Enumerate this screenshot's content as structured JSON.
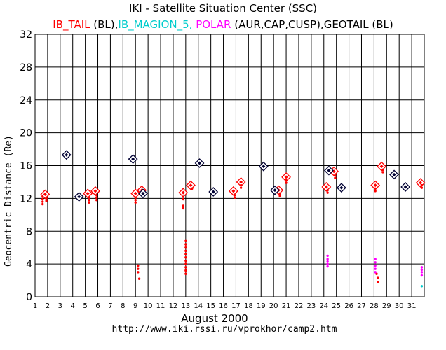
{
  "chart_data": {
    "type": "scatter",
    "title": "IKI - Satellite Situation Center (SSC)",
    "legend_parts": [
      {
        "text": "IB_TAIL",
        "color": "#ff0000"
      },
      {
        "text": " (BL),",
        "color": "#000000"
      },
      {
        "text": "IB_MAGION_5,",
        "color": "#00cccc"
      },
      {
        "text": " POLAR",
        "color": "#ff00ff"
      },
      {
        "text": " (AUR,CAP,CUSP),GEOTAIL (BL)",
        "color": "#000000"
      }
    ],
    "ylabel": "Geocentric Distance (Re)",
    "xlabel": "August   2000",
    "url": "http://www.iki.rssi.ru/vprokhor/camp2.htm",
    "xlim": [
      1,
      32
    ],
    "ylim": [
      0,
      32
    ],
    "xticks": [
      1,
      2,
      3,
      4,
      5,
      6,
      7,
      8,
      9,
      10,
      11,
      12,
      13,
      14,
      15,
      16,
      17,
      18,
      19,
      20,
      21,
      22,
      23,
      24,
      25,
      26,
      27,
      28,
      29,
      30,
      31
    ],
    "yticks": [
      0,
      4,
      8,
      12,
      16,
      20,
      24,
      28,
      32
    ],
    "grid": true,
    "colors": {
      "ib_tail": "#ff0000",
      "ib_magion_5": "#00cccc",
      "polar": "#ff00ff",
      "geotail": "#000033"
    },
    "series": [
      {
        "name": "IB_TAIL",
        "marker": "diamond",
        "points": [
          [
            1.8,
            12.5
          ],
          [
            5.2,
            12.6
          ],
          [
            5.8,
            12.9
          ],
          [
            9.0,
            12.6
          ],
          [
            9.5,
            13.0
          ],
          [
            12.8,
            12.7
          ],
          [
            13.4,
            13.6
          ],
          [
            16.8,
            12.9
          ],
          [
            17.4,
            14.0
          ],
          [
            20.4,
            13.0
          ],
          [
            21.0,
            14.6
          ],
          [
            24.2,
            13.4
          ],
          [
            24.8,
            15.3
          ],
          [
            28.1,
            13.6
          ],
          [
            28.6,
            15.9
          ],
          [
            31.7,
            13.9
          ]
        ]
      },
      {
        "name": "IB_TAIL (BL)",
        "marker": "dots",
        "points": [
          [
            1.6,
            12.2
          ],
          [
            1.6,
            11.9
          ],
          [
            1.6,
            11.6
          ],
          [
            1.6,
            11.3
          ],
          [
            1.9,
            12.0
          ],
          [
            1.9,
            11.7
          ],
          [
            5.3,
            12.1
          ],
          [
            5.3,
            11.8
          ],
          [
            5.3,
            11.5
          ],
          [
            5.9,
            12.4
          ],
          [
            5.9,
            12.1
          ],
          [
            5.9,
            11.8
          ],
          [
            9.0,
            12.1
          ],
          [
            9.0,
            11.8
          ],
          [
            9.0,
            11.5
          ],
          [
            9.2,
            3.8
          ],
          [
            9.2,
            3.4
          ],
          [
            9.2,
            3.0
          ],
          [
            9.3,
            2.2
          ],
          [
            12.8,
            12.2
          ],
          [
            12.8,
            11.9
          ],
          [
            12.8,
            11.1
          ],
          [
            12.8,
            10.8
          ],
          [
            13.0,
            6.8
          ],
          [
            13.0,
            6.4
          ],
          [
            13.0,
            6.0
          ],
          [
            13.0,
            5.6
          ],
          [
            13.0,
            5.2
          ],
          [
            13.0,
            4.8
          ],
          [
            13.0,
            4.4
          ],
          [
            13.0,
            4.0
          ],
          [
            13.0,
            3.6
          ],
          [
            13.0,
            3.2
          ],
          [
            13.0,
            2.8
          ],
          [
            13.5,
            13.2
          ],
          [
            16.9,
            12.4
          ],
          [
            16.9,
            12.1
          ],
          [
            17.4,
            13.6
          ],
          [
            17.4,
            13.3
          ],
          [
            20.5,
            12.6
          ],
          [
            20.5,
            12.3
          ],
          [
            21.0,
            14.2
          ],
          [
            21.0,
            13.9
          ],
          [
            24.3,
            13.0
          ],
          [
            24.3,
            12.7
          ],
          [
            24.9,
            14.8
          ],
          [
            24.9,
            14.5
          ],
          [
            28.1,
            13.2
          ],
          [
            28.1,
            12.9
          ],
          [
            28.2,
            2.8
          ],
          [
            28.3,
            2.3
          ],
          [
            28.3,
            1.8
          ],
          [
            28.7,
            15.5
          ],
          [
            28.7,
            15.2
          ],
          [
            31.8,
            13.6
          ],
          [
            31.8,
            13.3
          ]
        ]
      },
      {
        "name": "GEOTAIL (BL)",
        "marker": "diamond",
        "points": [
          [
            3.5,
            17.3
          ],
          [
            4.5,
            12.2
          ],
          [
            8.8,
            16.8
          ],
          [
            9.6,
            12.6
          ],
          [
            14.1,
            16.3
          ],
          [
            15.2,
            12.8
          ],
          [
            19.2,
            15.9
          ],
          [
            20.1,
            13.0
          ],
          [
            24.4,
            15.4
          ],
          [
            25.4,
            13.3
          ],
          [
            29.6,
            14.9
          ],
          [
            30.5,
            13.4
          ]
        ]
      },
      {
        "name": "POLAR (AUR,CAP,CUSP)",
        "marker": "dots",
        "points": [
          [
            24.3,
            5.0
          ],
          [
            24.3,
            4.6
          ],
          [
            24.3,
            4.3
          ],
          [
            24.3,
            4.0
          ],
          [
            24.3,
            3.7
          ],
          [
            28.1,
            4.6
          ],
          [
            28.1,
            4.2
          ],
          [
            28.1,
            3.8
          ],
          [
            28.1,
            3.4
          ],
          [
            28.1,
            3.0
          ],
          [
            31.8,
            3.6
          ],
          [
            31.8,
            3.3
          ],
          [
            31.8,
            3.0
          ],
          [
            31.8,
            2.6
          ]
        ]
      },
      {
        "name": "IB_MAGION_5",
        "marker": "dots",
        "points": [
          [
            31.8,
            1.3
          ]
        ]
      }
    ]
  }
}
